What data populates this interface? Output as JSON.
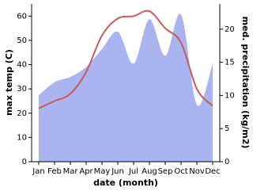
{
  "chart_data": {
    "type": "line-area",
    "xlabel": "date (month)",
    "ylabel": "max temp (C)",
    "y2label": "med. precipitation (kg/m2)",
    "categories": [
      "Jan",
      "Feb",
      "Mar",
      "Apr",
      "May",
      "Jun",
      "Jul",
      "Aug",
      "Sep",
      "Oct",
      "Nov",
      "Dec"
    ],
    "series": [
      {
        "name": "med. precipitation",
        "type": "area",
        "axis": "y2",
        "color": "#aab4f0",
        "values": [
          10,
          12,
          12.8,
          14.3,
          17,
          19.6,
          14.8,
          21.5,
          16,
          22.2,
          8.6,
          14.8
        ]
      },
      {
        "name": "max temp",
        "type": "line",
        "color": "#c85a5a",
        "values": [
          22,
          25,
          28,
          37,
          52,
          59,
          60,
          62,
          55,
          49,
          30,
          23
        ]
      }
    ],
    "ylim": [
      0,
      65
    ],
    "yticks": [
      0,
      10,
      20,
      30,
      40,
      50,
      60
    ],
    "y2lim": [
      0,
      23.8
    ],
    "y2ticks": [
      0,
      5,
      10,
      15,
      20
    ]
  }
}
